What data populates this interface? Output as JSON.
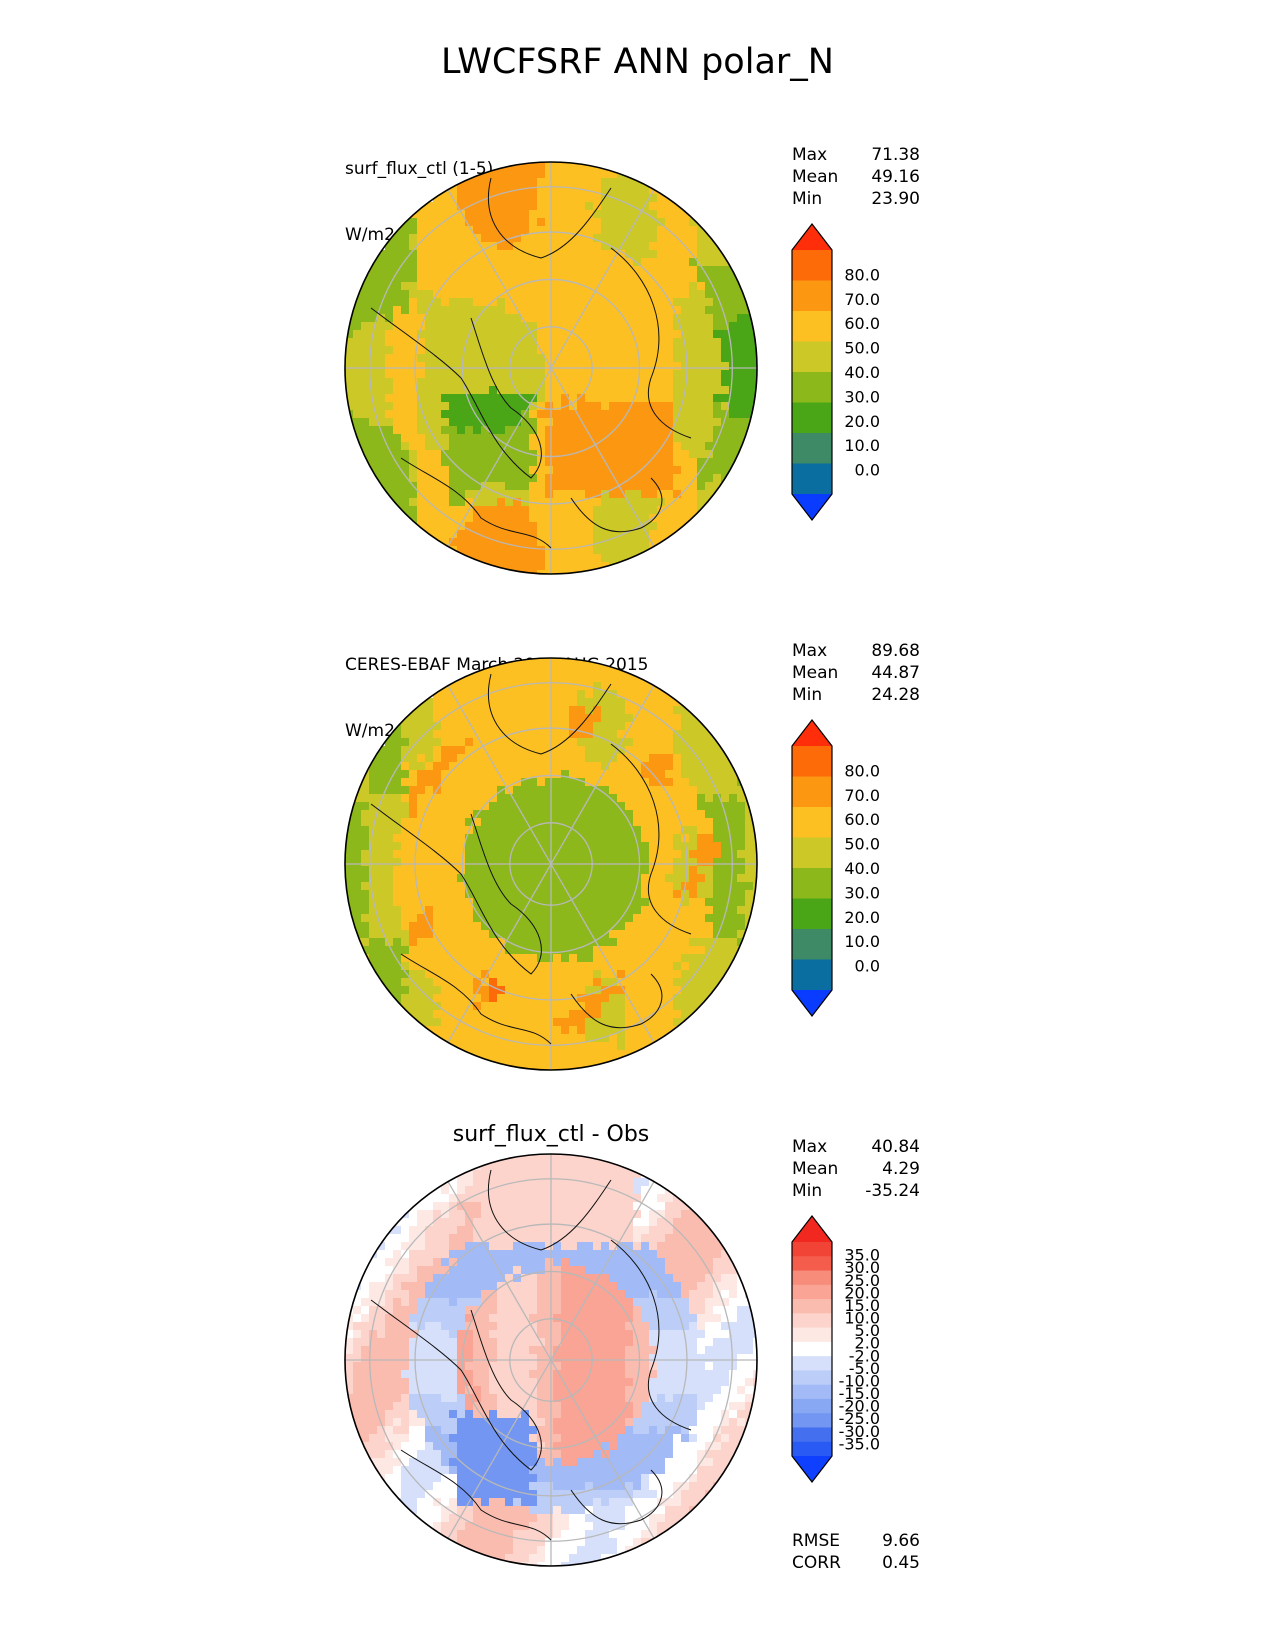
{
  "figure_title": "LWCFSRF ANN polar_N",
  "palette_abs": [
    "#0a3cff",
    "#0a6fa0",
    "#3f8a66",
    "#4aa616",
    "#8cb81c",
    "#cbc828",
    "#fcc022",
    "#fc9712",
    "#fd6a08",
    "#fe2e0a"
  ],
  "palette_diff": [
    "#1040ff",
    "#2a5af4",
    "#4470f0",
    "#5c84f0",
    "#7296f2",
    "#89a8f4",
    "#a2baf6",
    "#bccef8",
    "#d6e0fa",
    "#ecf0fc",
    "#ffffff",
    "#fde8e4",
    "#fcd4cc",
    "#fbbcb0",
    "#f9a494",
    "#f88c7a",
    "#f77462",
    "#f45c4c",
    "#f24436",
    "#f02820"
  ],
  "panels": [
    {
      "title_line1": "surf_flux_ctl (1-5)",
      "title_line2": "W/m2",
      "stats": {
        "max_label": "Max",
        "max": "71.38",
        "mean_label": "Mean",
        "mean": "49.16",
        "min_label": "Min",
        "min": "23.90"
      },
      "colorbar_ticks": [
        "80.0",
        "70.0",
        "60.0",
        "50.0",
        "40.0",
        "30.0",
        "20.0",
        "10.0",
        "0.0"
      ]
    },
    {
      "title_line1": "CERES-EBAF March 2000-AUG 2015",
      "title_line2": "W/m2",
      "stats": {
        "max_label": "Max",
        "max": "89.68",
        "mean_label": "Mean",
        "mean": "44.87",
        "min_label": "Min",
        "min": "24.28"
      },
      "colorbar_ticks": [
        "80.0",
        "70.0",
        "60.0",
        "50.0",
        "40.0",
        "30.0",
        "20.0",
        "10.0",
        "0.0"
      ]
    },
    {
      "title": "surf_flux_ctl - Obs",
      "stats": {
        "max_label": "Max",
        "max": "40.84",
        "mean_label": "Mean",
        "mean": "4.29",
        "min_label": "Min",
        "min": "-35.24"
      },
      "colorbar_ticks": [
        "35.0",
        "30.0",
        "25.0",
        "20.0",
        "15.0",
        "10.0",
        "5.0",
        "2.0",
        "-2.0",
        "-5.0",
        "-10.0",
        "-15.0",
        "-20.0",
        "-25.0",
        "-30.0",
        "-35.0"
      ],
      "rmse_label": "RMSE",
      "rmse": "9.66",
      "corr_label": "CORR",
      "corr": "0.45"
    }
  ],
  "chart_data": [
    {
      "type": "heatmap",
      "projection": "polar stereographic (north)",
      "title": "surf_flux_ctl (1-5)",
      "units": "W/m2",
      "max": 71.38,
      "mean": 49.16,
      "min": 23.9,
      "levels": [
        0,
        10,
        20,
        30,
        40,
        50,
        60,
        70,
        80
      ],
      "colorbar_extend": "both"
    },
    {
      "type": "heatmap",
      "projection": "polar stereographic (north)",
      "title": "CERES-EBAF March 2000-AUG 2015",
      "units": "W/m2",
      "max": 89.68,
      "mean": 44.87,
      "min": 24.28,
      "levels": [
        0,
        10,
        20,
        30,
        40,
        50,
        60,
        70,
        80
      ],
      "colorbar_extend": "both"
    },
    {
      "type": "heatmap",
      "projection": "polar stereographic (north)",
      "title": "surf_flux_ctl - Obs",
      "max": 40.84,
      "mean": 4.29,
      "min": -35.24,
      "levels": [
        -35,
        -30,
        -25,
        -20,
        -15,
        -10,
        -5,
        -2,
        2,
        5,
        10,
        15,
        20,
        25,
        30,
        35
      ],
      "colorbar_extend": "both",
      "rmse": 9.66,
      "corr": 0.45
    }
  ]
}
